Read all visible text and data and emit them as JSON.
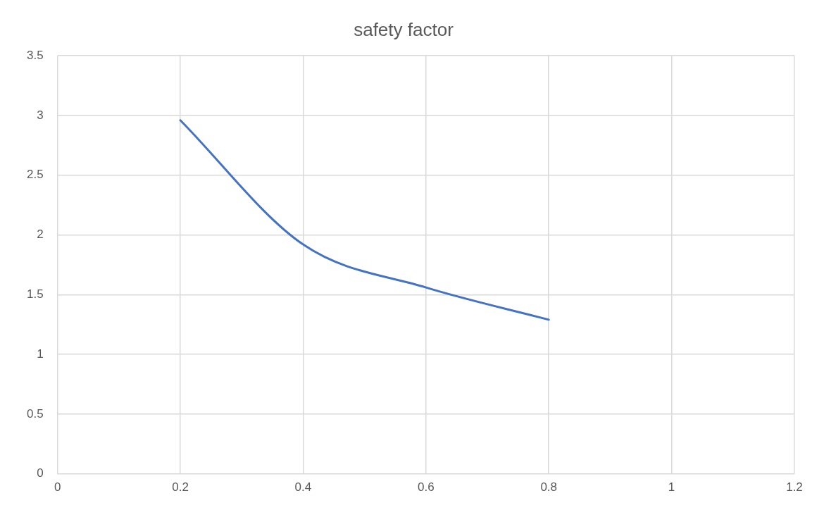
{
  "chart_data": {
    "type": "line",
    "title": "safety factor",
    "x": [
      0.2,
      0.4,
      0.6,
      0.8
    ],
    "series": [
      {
        "color": "#4472c4",
        "values": [
          2.96,
          1.92,
          1.56,
          1.29
        ]
      }
    ],
    "xlim": [
      0,
      1.2
    ],
    "xticks": [
      0,
      0.2,
      0.4,
      0.6,
      0.8,
      1,
      1.2
    ],
    "ylim": [
      0,
      3.5
    ],
    "yticks": [
      0,
      0.5,
      1,
      1.5,
      2,
      2.5,
      3,
      3.5
    ],
    "grid": true,
    "legend": false,
    "marker": "none",
    "line_style": "solid"
  }
}
